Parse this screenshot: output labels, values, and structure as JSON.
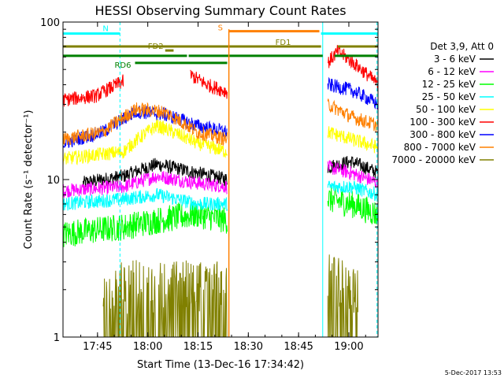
{
  "chart_data": {
    "type": "line",
    "title": "HESSI Observing Summary Count Rates",
    "xlabel": "Start Time (13-Dec-16 17:34:42)",
    "ylabel": "Count Rate (s⁻¹ detector⁻¹)",
    "yscale": "log",
    "ylim": [
      1,
      100
    ],
    "xlim_minutes_after_start": [
      0,
      94
    ],
    "x_ticks": [
      {
        "label": "17:45",
        "minute": 10.3
      },
      {
        "label": "18:00",
        "minute": 25.3
      },
      {
        "label": "18:15",
        "minute": 40.3
      },
      {
        "label": "18:30",
        "minute": 55.3
      },
      {
        "label": "18:45",
        "minute": 70.3
      },
      {
        "label": "19:00",
        "minute": 85.3
      }
    ],
    "y_ticks": [
      {
        "label": "1",
        "value": 1
      },
      {
        "label": "10",
        "value": 10
      },
      {
        "label": "100",
        "value": 100
      }
    ],
    "legend_title": "Det 3,9, Att 0",
    "legend_position": "right",
    "footer_date": "5-Dec-2017 13:53",
    "series": [
      {
        "name": "3 - 6 keV",
        "color": "#000000",
        "segments": [
          {
            "x0": 6,
            "x1": 49,
            "knots": [
              [
                6,
                9.5
              ],
              [
                18,
                10.5
              ],
              [
                28,
                12.5
              ],
              [
                40,
                11
              ],
              [
                49,
                10
              ]
            ]
          },
          {
            "x0": 79,
            "x1": 94,
            "knots": [
              [
                79,
                12
              ],
              [
                86,
                13
              ],
              [
                94,
                11
              ]
            ]
          }
        ]
      },
      {
        "name": "6 - 12 keV",
        "color": "#ff00ff",
        "segments": [
          {
            "x0": 0,
            "x1": 49,
            "knots": [
              [
                0,
                8.5
              ],
              [
                18,
                9
              ],
              [
                28,
                10.5
              ],
              [
                40,
                9.5
              ],
              [
                49,
                9
              ]
            ]
          },
          {
            "x0": 79,
            "x1": 94,
            "knots": [
              [
                79,
                12
              ],
              [
                86,
                11
              ],
              [
                94,
                9.5
              ]
            ]
          }
        ]
      },
      {
        "name": "12 - 25 keV",
        "color": "#00ff00",
        "segments": [
          {
            "x0": 0,
            "x1": 49,
            "knots": [
              [
                0,
                4.5
              ],
              [
                18,
                5
              ],
              [
                28,
                5.5
              ],
              [
                40,
                6
              ],
              [
                49,
                5.5
              ]
            ]
          },
          {
            "x0": 79,
            "x1": 94,
            "knots": [
              [
                79,
                7.5
              ],
              [
                86,
                7
              ],
              [
                94,
                6
              ]
            ]
          }
        ]
      },
      {
        "name": "25 - 50 keV",
        "color": "#00ffff",
        "segments": [
          {
            "x0": 0,
            "x1": 49,
            "knots": [
              [
                0,
                7
              ],
              [
                18,
                7.5
              ],
              [
                28,
                8
              ],
              [
                40,
                7
              ],
              [
                49,
                7
              ]
            ]
          },
          {
            "x0": 79,
            "x1": 94,
            "knots": [
              [
                79,
                9
              ],
              [
                86,
                9
              ],
              [
                94,
                8
              ]
            ]
          }
        ]
      },
      {
        "name": "50 - 100 keV",
        "color": "#ffff00",
        "segments": [
          {
            "x0": 0,
            "x1": 49,
            "knots": [
              [
                0,
                13.5
              ],
              [
                18,
                15
              ],
              [
                28,
                22
              ],
              [
                40,
                17
              ],
              [
                49,
                15
              ]
            ]
          },
          {
            "x0": 79,
            "x1": 94,
            "knots": [
              [
                79,
                20
              ],
              [
                86,
                18
              ],
              [
                94,
                16
              ]
            ]
          }
        ]
      },
      {
        "name": "100 - 300 keV",
        "color": "#ff0000",
        "segments": [
          {
            "x0": 0,
            "x1": 18,
            "knots": [
              [
                0,
                32
              ],
              [
                10,
                34
              ],
              [
                18,
                42
              ]
            ]
          },
          {
            "x0": 38,
            "x1": 49,
            "knots": [
              [
                38,
                46
              ],
              [
                43,
                40
              ],
              [
                49,
                36
              ]
            ]
          },
          {
            "x0": 79,
            "x1": 94,
            "knots": [
              [
                79,
                55
              ],
              [
                82,
                65
              ],
              [
                88,
                52
              ],
              [
                94,
                40
              ]
            ]
          }
        ]
      },
      {
        "name": "300 - 800 keV",
        "color": "#0000ff",
        "segments": [
          {
            "x0": 0,
            "x1": 49,
            "knots": [
              [
                0,
                17
              ],
              [
                12,
                20
              ],
              [
                22,
                27
              ],
              [
                30,
                26
              ],
              [
                40,
                22
              ],
              [
                49,
                20
              ]
            ]
          },
          {
            "x0": 79,
            "x1": 94,
            "knots": [
              [
                79,
                40
              ],
              [
                86,
                37
              ],
              [
                94,
                30
              ]
            ]
          }
        ]
      },
      {
        "name": "800 - 7000 keV",
        "color": "#ff8000",
        "segments": [
          {
            "x0": 0,
            "x1": 49,
            "knots": [
              [
                0,
                18
              ],
              [
                12,
                20
              ],
              [
                22,
                28
              ],
              [
                30,
                27
              ],
              [
                40,
                20
              ],
              [
                49,
                18
              ]
            ]
          },
          {
            "x0": 79,
            "x1": 94,
            "knots": [
              [
                79,
                30
              ],
              [
                86,
                25
              ],
              [
                94,
                22
              ]
            ]
          }
        ]
      },
      {
        "name": "7000 - 20000 keV",
        "color": "#808000",
        "segments": [
          {
            "x0": 12,
            "x1": 49,
            "knots": [
              [
                12,
                1.4
              ],
              [
                30,
                1.4
              ],
              [
                49,
                1.4
              ]
            ]
          },
          {
            "x0": 79,
            "x1": 88,
            "knots": [
              [
                79,
                1.6
              ],
              [
                84,
                1.4
              ],
              [
                88,
                1.2
              ]
            ]
          }
        ]
      }
    ],
    "flags": [
      {
        "label": "N",
        "color": "#00ffff",
        "y": 84.5,
        "segments": [
          [
            0,
            17
          ],
          [
            77,
            94
          ]
        ]
      },
      {
        "label": "FD1",
        "color": "#808000",
        "y": 70,
        "segments": [
          [
            0,
            77
          ],
          [
            82,
            94
          ]
        ]
      },
      {
        "label": "FD2",
        "color": "#808000",
        "y": 66,
        "segments": [
          [
            30.5,
            33
          ]
        ]
      },
      {
        "label": "RD0",
        "color": "#008000",
        "y": 61,
        "segments": [
          [
            0,
            37
          ],
          [
            37.5,
            77.5
          ],
          [
            81,
            94
          ]
        ]
      },
      {
        "label": "RD6",
        "color": "#008000",
        "y": 55,
        "segments": [
          [
            21.5,
            49
          ]
        ]
      },
      {
        "label": "S",
        "color": "#ff8000",
        "y": 87.5,
        "segments": [
          [
            49.5,
            76.5
          ]
        ]
      }
    ],
    "night_markers": {
      "color": "#00ffff",
      "solid_minutes": [
        77.5
      ],
      "dashed_minutes": [
        17,
        93.7
      ]
    }
  }
}
